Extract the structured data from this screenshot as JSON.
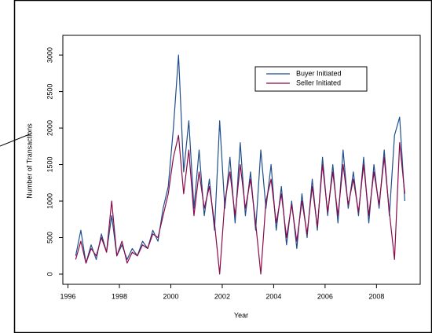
{
  "chart_data": {
    "type": "line",
    "x_label": "Year",
    "y_label": "Number of Transactions",
    "x": [
      1996.3,
      1996.5,
      1996.7,
      1996.9,
      1997.1,
      1997.3,
      1997.5,
      1997.7,
      1997.9,
      1998.1,
      1998.3,
      1998.5,
      1998.7,
      1998.9,
      1999.1,
      1999.3,
      1999.5,
      1999.7,
      1999.9,
      2000.1,
      2000.3,
      2000.5,
      2000.7,
      2000.9,
      2001.1,
      2001.3,
      2001.5,
      2001.7,
      2001.9,
      2002.1,
      2002.3,
      2002.5,
      2002.7,
      2002.9,
      2003.1,
      2003.3,
      2003.5,
      2003.7,
      2003.9,
      2004.1,
      2004.3,
      2004.5,
      2004.7,
      2004.9,
      2005.1,
      2005.3,
      2005.5,
      2005.7,
      2005.9,
      2006.1,
      2006.3,
      2006.5,
      2006.7,
      2006.9,
      2007.1,
      2007.3,
      2007.5,
      2007.7,
      2007.9,
      2008.1,
      2008.3,
      2008.5,
      2008.7,
      2008.9,
      2009.1
    ],
    "series": [
      {
        "name": "Buyer Initiated",
        "color": "#1f4e8c",
        "values": [
          250,
          600,
          150,
          400,
          200,
          550,
          300,
          800,
          250,
          400,
          200,
          350,
          250,
          450,
          350,
          600,
          450,
          900,
          1200,
          2000,
          3000,
          1400,
          2100,
          900,
          1700,
          800,
          1300,
          600,
          2100,
          900,
          1600,
          700,
          1800,
          800,
          1400,
          600,
          1700,
          900,
          1500,
          600,
          1200,
          400,
          1000,
          350,
          1100,
          500,
          1300,
          600,
          1600,
          800,
          1500,
          700,
          1700,
          900,
          1400,
          800,
          1600,
          700,
          1500,
          900,
          1700,
          800,
          1900,
          2150,
          1000
        ]
      },
      {
        "name": "Seller Initiated",
        "color": "#8b0a4a",
        "values": [
          200,
          450,
          150,
          350,
          250,
          500,
          300,
          1000,
          250,
          450,
          150,
          300,
          250,
          400,
          350,
          550,
          500,
          800,
          1100,
          1600,
          1900,
          1100,
          1700,
          800,
          1400,
          900,
          1200,
          700,
          0,
          1000,
          1400,
          800,
          1500,
          900,
          1300,
          700,
          0,
          1000,
          1300,
          700,
          1100,
          500,
          950,
          450,
          1000,
          550,
          1200,
          650,
          1500,
          850,
          1400,
          800,
          1500,
          950,
          1300,
          850,
          1500,
          800,
          1400,
          950,
          1600,
          850,
          200,
          1800,
          1100
        ]
      }
    ],
    "xlim": [
      1995.8,
      2009.7
    ],
    "ylim": [
      -140,
      3270
    ],
    "xticks": [
      1996,
      1998,
      2000,
      2002,
      2004,
      2006,
      2008
    ],
    "yticks": [
      0,
      500,
      1000,
      1500,
      2000,
      2500,
      3000
    ],
    "legend": "upper-right"
  }
}
